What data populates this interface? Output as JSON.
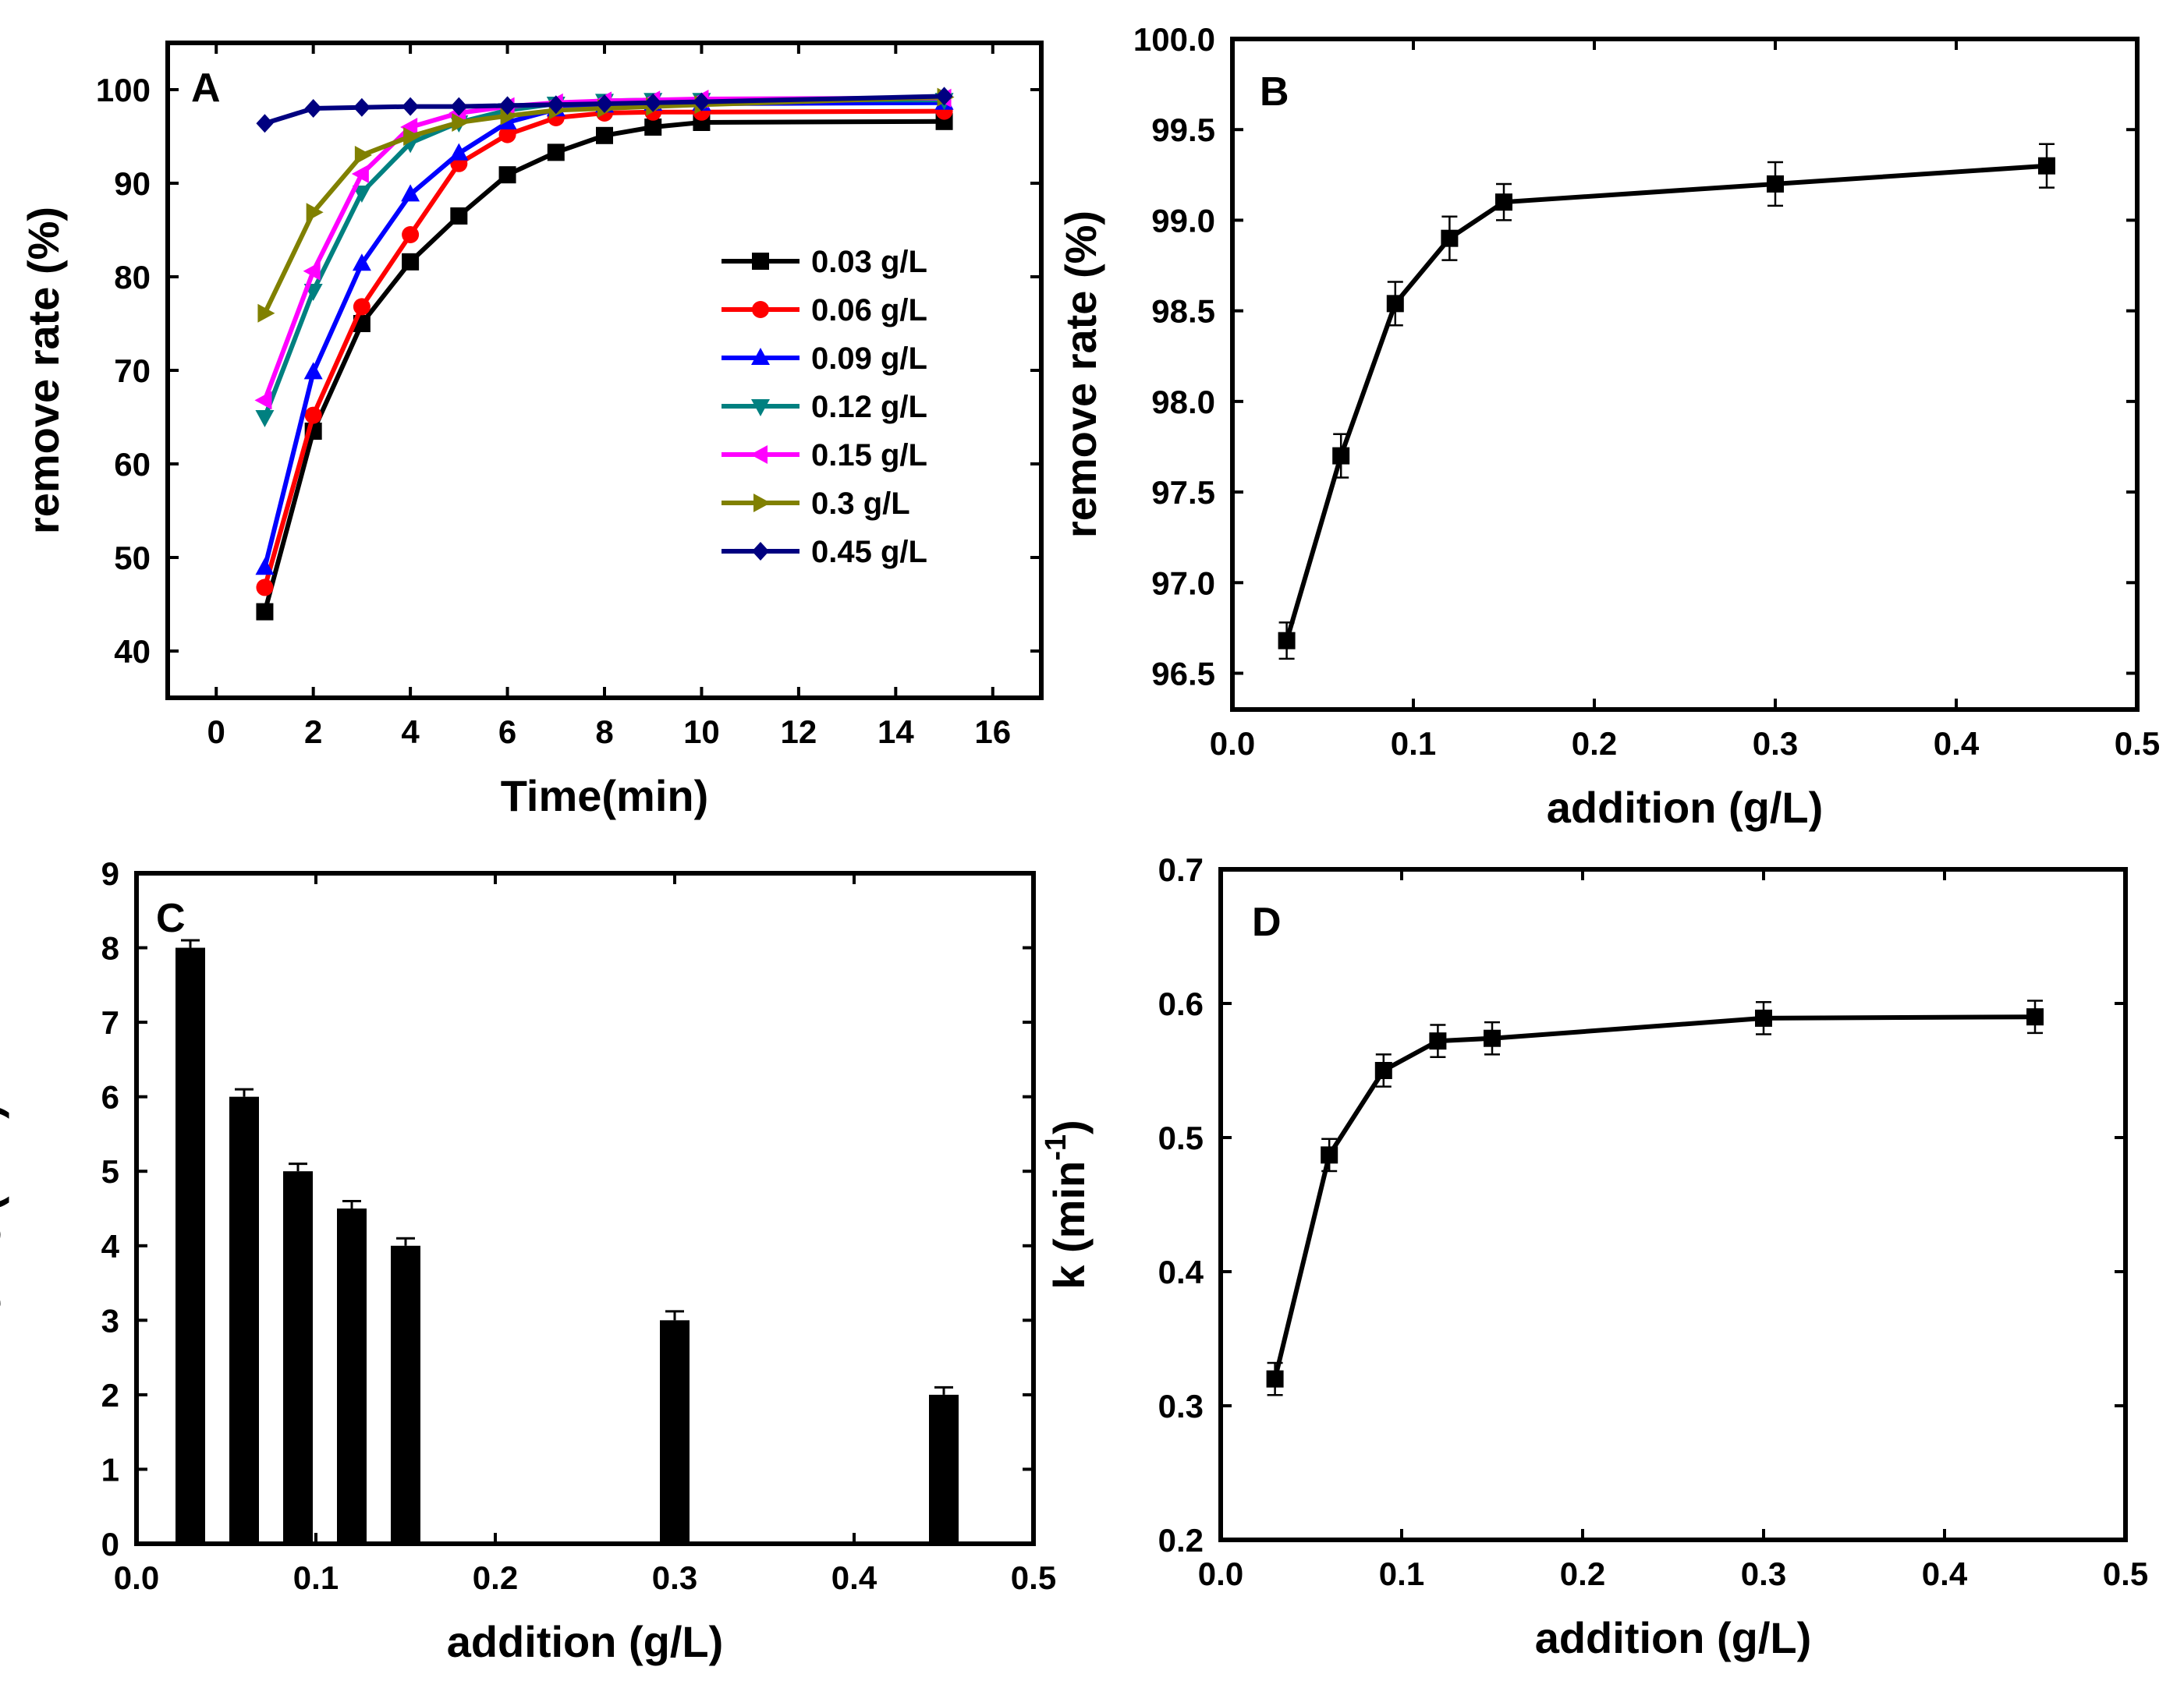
{
  "chart_data": [
    {
      "panel": "A",
      "type": "line",
      "title": "",
      "xlabel": "Time(min)",
      "ylabel": "remove rate (%)",
      "xlim": [
        -1,
        17
      ],
      "ylim": [
        35,
        105
      ],
      "xticks": [
        0,
        2,
        4,
        6,
        8,
        10,
        12,
        14,
        16
      ],
      "yticks": [
        40,
        50,
        60,
        70,
        80,
        90,
        100
      ],
      "x": [
        1,
        2,
        3,
        4,
        5,
        6,
        7,
        8,
        9,
        10,
        15
      ],
      "legend_position": "center-right",
      "series": [
        {
          "name": "0.03 g/L",
          "color": "#000000",
          "marker": "square",
          "values": [
            44.2,
            63.5,
            75.0,
            81.6,
            86.5,
            90.9,
            93.3,
            95.1,
            96.0,
            96.5,
            96.6
          ]
        },
        {
          "name": "0.06 g/L",
          "color": "#ff0000",
          "marker": "circle",
          "values": [
            46.8,
            65.2,
            76.8,
            84.5,
            92.1,
            95.2,
            97.0,
            97.5,
            97.6,
            97.6,
            97.7
          ]
        },
        {
          "name": "0.09 g/L",
          "color": "#0000ff",
          "marker": "triangle-up",
          "values": [
            48.9,
            69.8,
            81.4,
            88.8,
            93.2,
            96.5,
            97.9,
            98.3,
            98.5,
            98.5,
            98.6
          ]
        },
        {
          "name": "0.12 g/L",
          "color": "#008080",
          "marker": "triangle-down",
          "values": [
            65.0,
            78.5,
            89.0,
            94.3,
            96.5,
            97.8,
            98.5,
            98.8,
            98.9,
            98.9,
            98.9
          ]
        },
        {
          "name": "0.15 g/L",
          "color": "#ff00ff",
          "marker": "triangle-left",
          "values": [
            66.8,
            80.6,
            91.0,
            96.0,
            97.5,
            98.2,
            98.6,
            98.8,
            98.9,
            99.0,
            99.1
          ]
        },
        {
          "name": "0.3 g/L",
          "color": "#808000",
          "marker": "triangle-right",
          "values": [
            76.1,
            86.9,
            93.0,
            95.0,
            96.5,
            97.2,
            97.8,
            98.0,
            98.2,
            98.4,
            99.2
          ]
        },
        {
          "name": "0.45 g/L",
          "color": "#000080",
          "marker": "diamond",
          "values": [
            96.4,
            98.0,
            98.1,
            98.2,
            98.2,
            98.3,
            98.4,
            98.5,
            98.6,
            98.7,
            99.3
          ]
        }
      ]
    },
    {
      "panel": "B",
      "type": "line",
      "title": "",
      "xlabel": "addition (g/L)",
      "ylabel": "remove rate (%)",
      "xlim": [
        0,
        0.5
      ],
      "ylim": [
        96.3,
        100.0
      ],
      "xticks": [
        "0.0",
        "0.1",
        "0.2",
        "0.3",
        "0.4",
        "0.5"
      ],
      "yticks": [
        "96.5",
        "97.0",
        "97.5",
        "98.0",
        "98.5",
        "99.0",
        "99.5",
        "100.0"
      ],
      "x": [
        0.03,
        0.06,
        0.09,
        0.12,
        0.15,
        0.3,
        0.45
      ],
      "values": [
        96.68,
        97.7,
        98.54,
        98.9,
        99.1,
        99.2,
        99.3
      ],
      "errors": [
        0.1,
        0.12,
        0.12,
        0.12,
        0.1,
        0.12,
        0.12
      ],
      "color": "#000000",
      "marker": "square"
    },
    {
      "panel": "C",
      "type": "bar",
      "title": "",
      "xlabel": "addition (g/L)",
      "ylabel": "time (min)",
      "xlim": [
        0,
        0.5
      ],
      "ylim": [
        0,
        9
      ],
      "xticks": [
        "0.0",
        "0.1",
        "0.2",
        "0.3",
        "0.4",
        "0.5"
      ],
      "yticks": [
        "0",
        "1",
        "2",
        "3",
        "4",
        "5",
        "6",
        "7",
        "8",
        "9"
      ],
      "x": [
        0.03,
        0.06,
        0.09,
        0.12,
        0.15,
        0.3,
        0.45
      ],
      "values": [
        8,
        6,
        5,
        4.5,
        4,
        3,
        2
      ],
      "errors": [
        0.1,
        0.1,
        0.1,
        0.1,
        0.1,
        0.12,
        0.1
      ],
      "color": "#000000"
    },
    {
      "panel": "D",
      "type": "line",
      "title": "",
      "xlabel": "addition (g/L)",
      "ylabel": "k (min",
      "ylabel_superscript": "-1",
      "ylabel_close": ")",
      "xlim": [
        0,
        0.5
      ],
      "ylim": [
        0.2,
        0.7
      ],
      "xticks": [
        "0.0",
        "0.1",
        "0.2",
        "0.3",
        "0.4",
        "0.5"
      ],
      "yticks": [
        "0.2",
        "0.3",
        "0.4",
        "0.5",
        "0.6",
        "0.7"
      ],
      "x": [
        0.03,
        0.06,
        0.09,
        0.12,
        0.15,
        0.3,
        0.45
      ],
      "values": [
        0.32,
        0.487,
        0.55,
        0.572,
        0.574,
        0.589,
        0.59
      ],
      "errors": [
        0.012,
        0.012,
        0.012,
        0.012,
        0.012,
        0.012,
        0.012
      ],
      "color": "#000000",
      "marker": "square"
    }
  ]
}
